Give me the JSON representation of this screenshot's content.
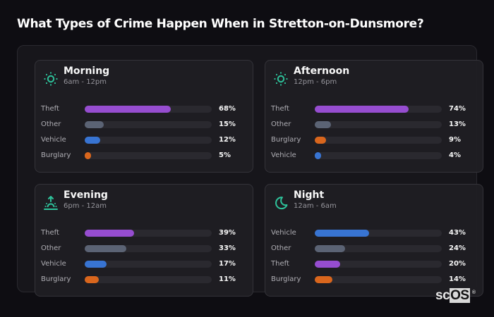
{
  "title": "What Types of Crime Happen When in Stretton-on-Dunsmore?",
  "colors": {
    "Theft": "#9b4fd6",
    "Other": "#5e6677",
    "Vehicle": "#3a78d8",
    "Burglary": "#e0691e",
    "icon_accent": "#2fc9a0"
  },
  "cards": [
    {
      "name": "Morning",
      "range": "6am - 12pm",
      "icon": "sun-icon",
      "rows": [
        {
          "label": "Theft",
          "value": 68,
          "pct": "68%"
        },
        {
          "label": "Other",
          "value": 15,
          "pct": "15%"
        },
        {
          "label": "Vehicle",
          "value": 12,
          "pct": "12%"
        },
        {
          "label": "Burglary",
          "value": 5,
          "pct": "5%"
        }
      ]
    },
    {
      "name": "Afternoon",
      "range": "12pm - 6pm",
      "icon": "sun-icon",
      "rows": [
        {
          "label": "Theft",
          "value": 74,
          "pct": "74%"
        },
        {
          "label": "Other",
          "value": 13,
          "pct": "13%"
        },
        {
          "label": "Burglary",
          "value": 9,
          "pct": "9%"
        },
        {
          "label": "Vehicle",
          "value": 4,
          "pct": "4%"
        }
      ]
    },
    {
      "name": "Evening",
      "range": "6pm - 12am",
      "icon": "sunset-icon",
      "rows": [
        {
          "label": "Theft",
          "value": 39,
          "pct": "39%"
        },
        {
          "label": "Other",
          "value": 33,
          "pct": "33%"
        },
        {
          "label": "Vehicle",
          "value": 17,
          "pct": "17%"
        },
        {
          "label": "Burglary",
          "value": 11,
          "pct": "11%"
        }
      ]
    },
    {
      "name": "Night",
      "range": "12am - 6am",
      "icon": "moon-icon",
      "rows": [
        {
          "label": "Vehicle",
          "value": 43,
          "pct": "43%"
        },
        {
          "label": "Other",
          "value": 24,
          "pct": "24%"
        },
        {
          "label": "Theft",
          "value": 20,
          "pct": "20%"
        },
        {
          "label": "Burglary",
          "value": 14,
          "pct": "14%"
        }
      ]
    }
  ],
  "logo": {
    "sc": "sc",
    "os": "OS",
    "reg": "®"
  },
  "chart_data": {
    "type": "bar",
    "title": "What Types of Crime Happen When in Stretton-on-Dunsmore?",
    "orientation": "horizontal",
    "panels": [
      {
        "title": "Morning",
        "subtitle": "6am - 12pm",
        "categories": [
          "Theft",
          "Other",
          "Vehicle",
          "Burglary"
        ],
        "values": [
          68,
          15,
          12,
          5
        ]
      },
      {
        "title": "Afternoon",
        "subtitle": "12pm - 6pm",
        "categories": [
          "Theft",
          "Other",
          "Burglary",
          "Vehicle"
        ],
        "values": [
          74,
          13,
          9,
          4
        ]
      },
      {
        "title": "Evening",
        "subtitle": "6pm - 12am",
        "categories": [
          "Theft",
          "Other",
          "Vehicle",
          "Burglary"
        ],
        "values": [
          39,
          33,
          17,
          11
        ]
      },
      {
        "title": "Night",
        "subtitle": "12am - 6am",
        "categories": [
          "Vehicle",
          "Other",
          "Theft",
          "Burglary"
        ],
        "values": [
          43,
          24,
          20,
          14
        ]
      }
    ],
    "unit": "%",
    "xlim": [
      0,
      100
    ],
    "grid": false,
    "legend": "none"
  }
}
